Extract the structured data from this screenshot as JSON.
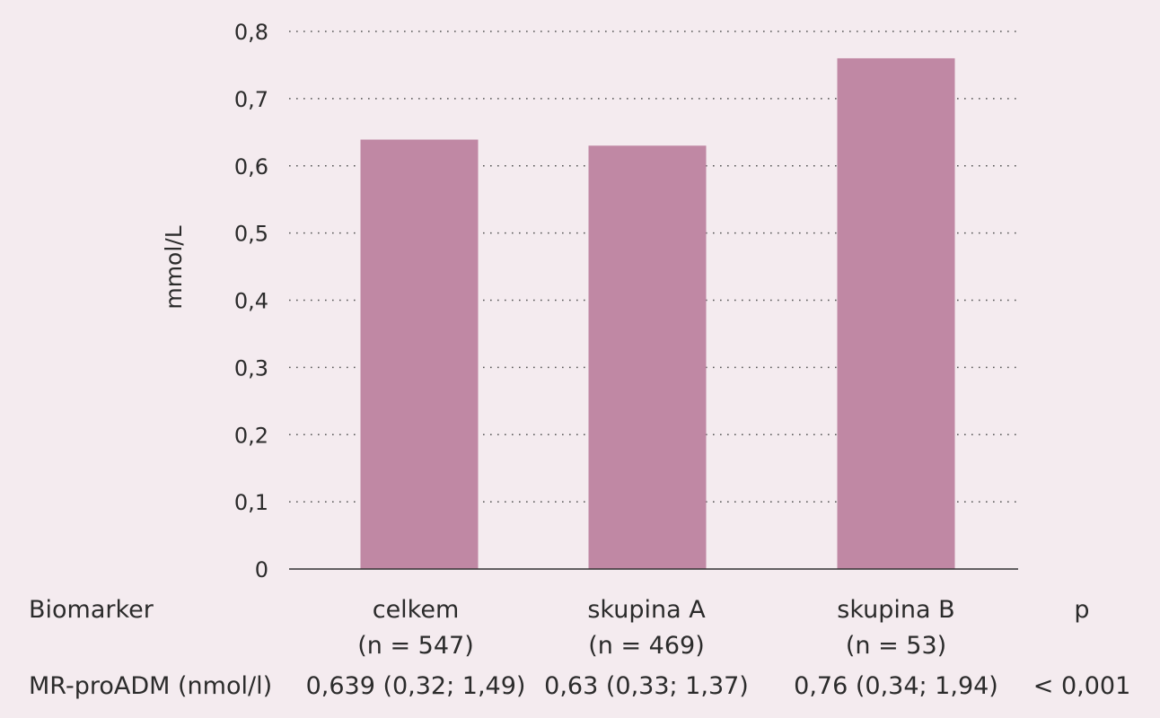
{
  "chart_data": {
    "type": "bar",
    "ylabel": "mmol/L",
    "xlabel": "",
    "ylim": [
      0,
      0.8
    ],
    "yticks": [
      "0",
      "0,1",
      "0,2",
      "0,3",
      "0,4",
      "0,5",
      "0,6",
      "0,7",
      "0,8"
    ],
    "grid": "dotted horizontal",
    "categories": [
      "celkem",
      "skupina A",
      "skupina B"
    ],
    "values": [
      0.639,
      0.63,
      0.76
    ],
    "bar_color": "#c088a4"
  },
  "table": {
    "header_label": "Biomarker",
    "p_header": "p",
    "groups": [
      {
        "name": "celkem",
        "n": "(n = 547)"
      },
      {
        "name": "skupina A",
        "n": "(n = 469)"
      },
      {
        "name": "skupina B",
        "n": "(n = 53)"
      }
    ],
    "row": {
      "label": "MR-proADM (nmol/l)",
      "values": [
        "0,639 (0,32; 1,49)",
        "0,63 (0,33; 1,37)",
        "0,76 (0,34; 1,94)"
      ],
      "p": "< 0,001"
    }
  }
}
